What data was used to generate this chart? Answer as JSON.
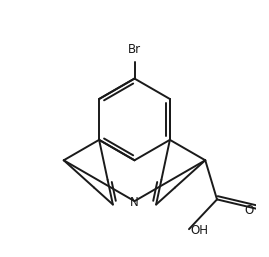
{
  "background_color": "#ffffff",
  "bond_color": "#1a1a1a",
  "text_color": "#1a1a1a",
  "lw": 1.4,
  "figsize": [
    2.69,
    2.57
  ],
  "dpi": 100,
  "xlim": [
    -4.0,
    4.0
  ],
  "ylim": [
    -4.2,
    4.2
  ]
}
